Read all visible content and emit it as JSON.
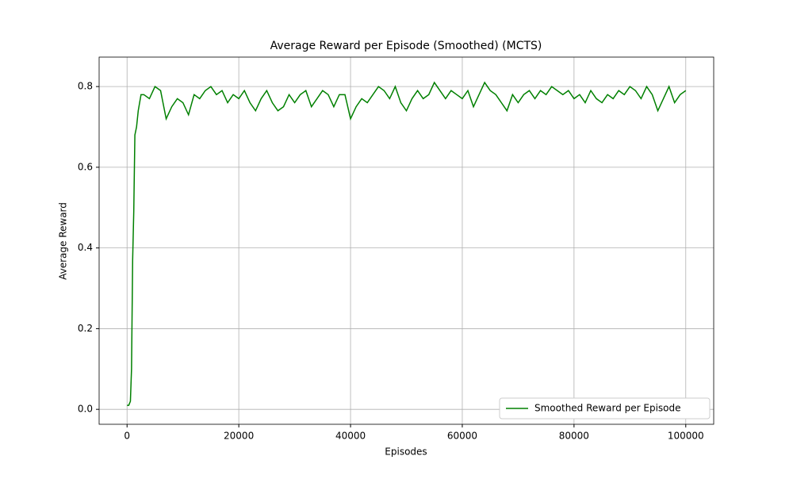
{
  "chart_data": {
    "type": "line",
    "title": "Average Reward per Episode (Smoothed) (MCTS)",
    "x_label": "Episodes",
    "y_label": "Average Reward",
    "x": [
      0,
      300,
      600,
      800,
      1000,
      1200,
      1400,
      1700,
      2000,
      2500,
      3000,
      4000,
      5000,
      6000,
      7000,
      8000,
      9000,
      10000,
      11000,
      12000,
      13000,
      14000,
      15000,
      16000,
      17000,
      18000,
      19000,
      20000,
      21000,
      22000,
      23000,
      24000,
      25000,
      26000,
      27000,
      28000,
      29000,
      30000,
      31000,
      32000,
      33000,
      34000,
      35000,
      36000,
      37000,
      38000,
      39000,
      40000,
      41000,
      42000,
      43000,
      44000,
      45000,
      46000,
      47000,
      48000,
      49000,
      50000,
      51000,
      52000,
      53000,
      54000,
      55000,
      56000,
      57000,
      58000,
      59000,
      60000,
      61000,
      62000,
      63000,
      64000,
      65000,
      66000,
      67000,
      68000,
      69000,
      70000,
      71000,
      72000,
      73000,
      74000,
      75000,
      76000,
      77000,
      78000,
      79000,
      80000,
      81000,
      82000,
      83000,
      84000,
      85000,
      86000,
      87000,
      88000,
      89000,
      90000,
      91000,
      92000,
      93000,
      94000,
      95000,
      96000,
      97000,
      98000,
      99000,
      100000
    ],
    "series": [
      {
        "name": "Smoothed Reward per Episode",
        "color": "#008000",
        "values": [
          0.01,
          0.01,
          0.02,
          0.1,
          0.37,
          0.49,
          0.68,
          0.7,
          0.74,
          0.78,
          0.78,
          0.77,
          0.8,
          0.79,
          0.72,
          0.75,
          0.77,
          0.76,
          0.73,
          0.78,
          0.77,
          0.79,
          0.8,
          0.78,
          0.79,
          0.76,
          0.78,
          0.77,
          0.79,
          0.76,
          0.74,
          0.77,
          0.79,
          0.76,
          0.74,
          0.75,
          0.78,
          0.76,
          0.78,
          0.79,
          0.75,
          0.77,
          0.79,
          0.78,
          0.75,
          0.78,
          0.78,
          0.72,
          0.75,
          0.77,
          0.76,
          0.78,
          0.8,
          0.79,
          0.77,
          0.8,
          0.76,
          0.74,
          0.77,
          0.79,
          0.77,
          0.78,
          0.81,
          0.79,
          0.77,
          0.79,
          0.78,
          0.77,
          0.79,
          0.75,
          0.78,
          0.81,
          0.79,
          0.78,
          0.76,
          0.74,
          0.78,
          0.76,
          0.78,
          0.79,
          0.77,
          0.79,
          0.78,
          0.8,
          0.79,
          0.78,
          0.79,
          0.77,
          0.78,
          0.76,
          0.79,
          0.77,
          0.76,
          0.78,
          0.77,
          0.79,
          0.78,
          0.8,
          0.79,
          0.77,
          0.8,
          0.78,
          0.74,
          0.77,
          0.8,
          0.76,
          0.78,
          0.79
        ]
      }
    ],
    "xlim": [
      -5000,
      105000
    ],
    "ylim": [
      -0.037,
      0.873
    ],
    "xticks": [
      0,
      20000,
      40000,
      60000,
      80000,
      100000
    ],
    "yticks": [
      {
        "value": 0,
        "label": "0.0"
      },
      0.2,
      0.4,
      0.6,
      0.8
    ],
    "grid": true,
    "legend": "lower right"
  }
}
